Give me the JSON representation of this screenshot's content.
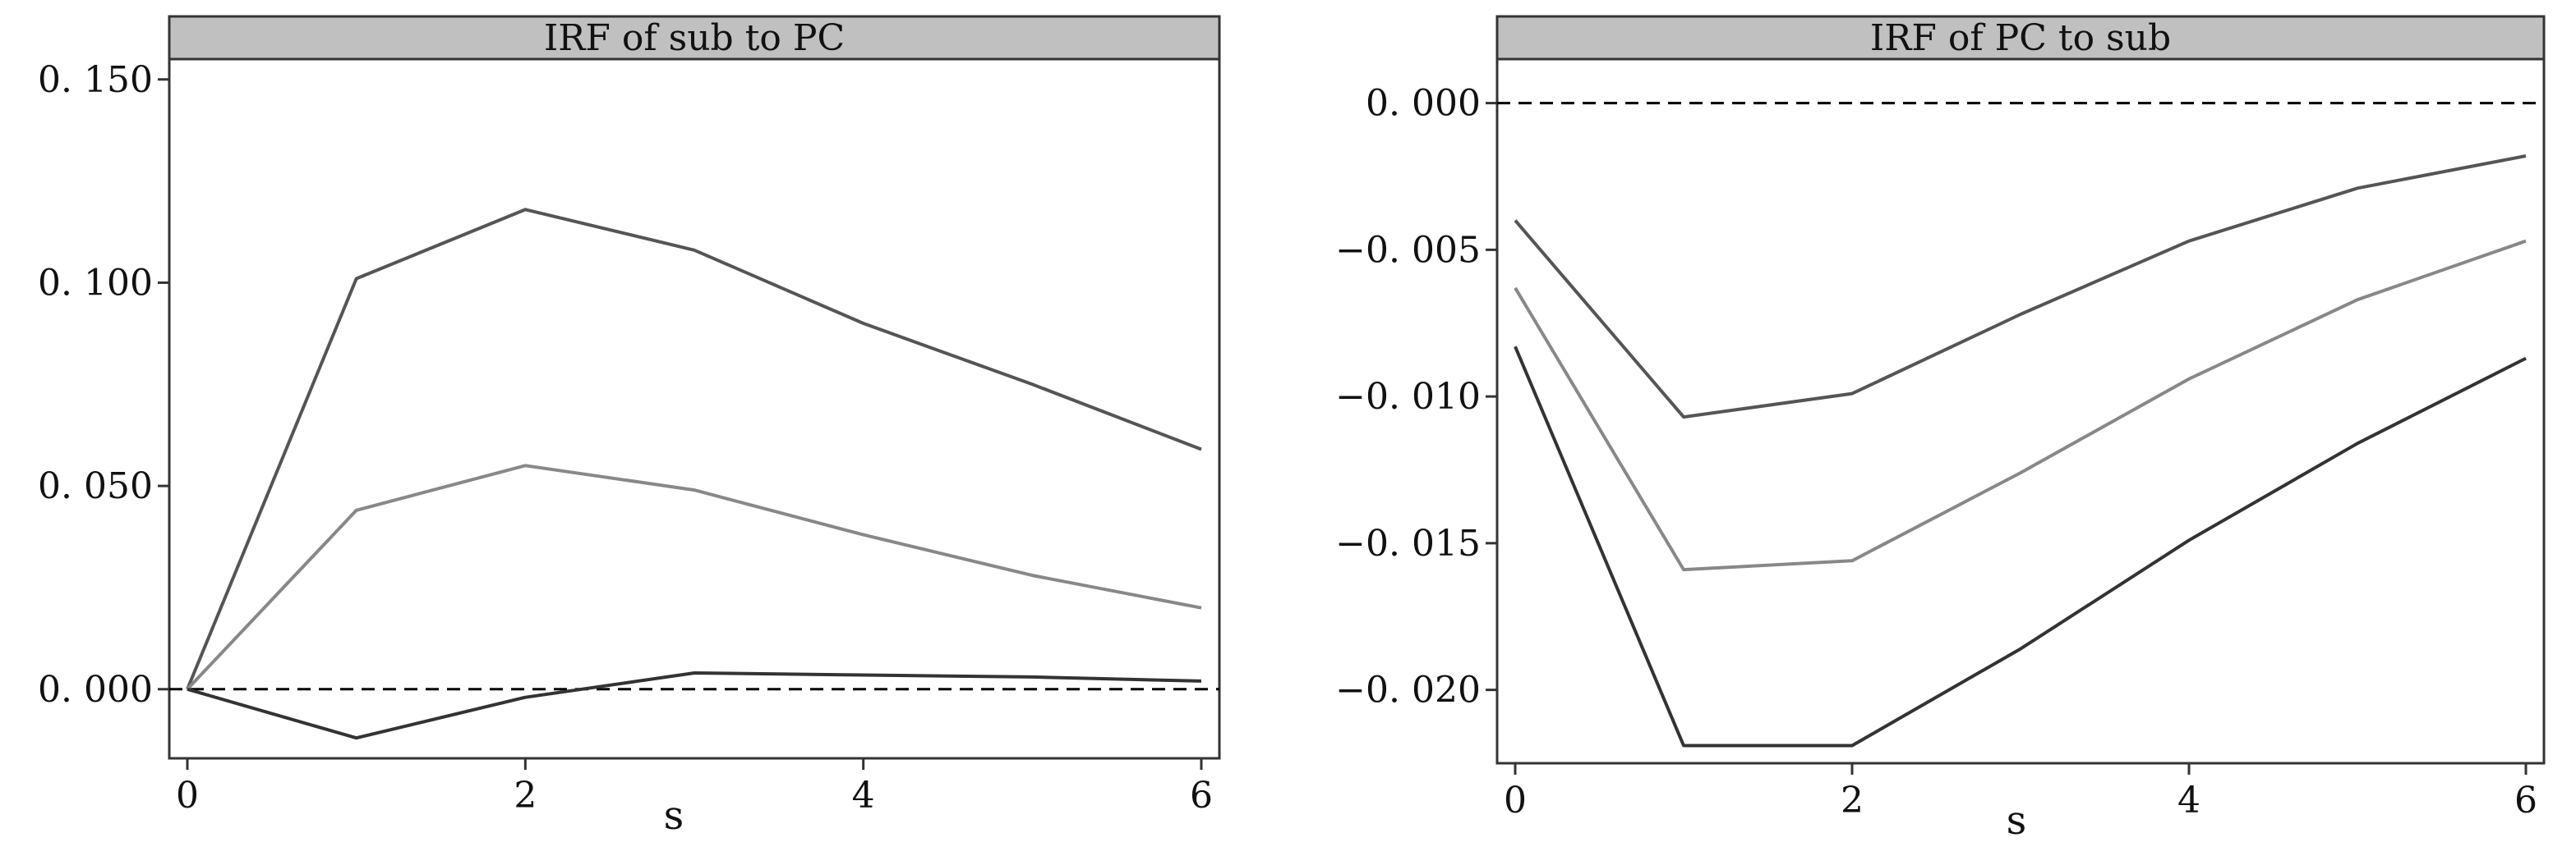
{
  "chart_data": [
    {
      "type": "line",
      "title": "IRF of sub to PC",
      "xlabel": "s",
      "ylabel": "",
      "x": [
        0,
        1,
        2,
        3,
        4,
        5,
        6
      ],
      "xlim": [
        0,
        6
      ],
      "ylim": [
        -0.017,
        0.155
      ],
      "xticks": [
        0,
        2,
        4,
        6
      ],
      "xtick_labels": [
        "0",
        "2",
        "4",
        "6"
      ],
      "yticks": [
        0,
        0.05,
        0.1,
        0.15
      ],
      "ytick_labels": [
        "0. 000",
        "0. 050",
        "0. 100",
        "0. 150"
      ],
      "reference_line": 0,
      "grid": false,
      "series": [
        {
          "values": [
            0,
            0.101,
            0.118,
            0.108,
            0.09,
            0.075,
            0.059
          ],
          "color": "#555555"
        },
        {
          "values": [
            0,
            0.044,
            0.055,
            0.049,
            0.038,
            0.028,
            0.02
          ],
          "color": "#888888"
        },
        {
          "values": [
            0,
            -0.012,
            -0.002,
            0.004,
            0.0035,
            0.003,
            0.002
          ],
          "color": "#333333"
        }
      ]
    },
    {
      "type": "line",
      "title": "IRF of PC to sub",
      "xlabel": "s",
      "ylabel": "",
      "x": [
        0,
        1,
        2,
        3,
        4,
        5,
        6
      ],
      "xlim": [
        0,
        6
      ],
      "ylim": [
        -0.0225,
        0.0015
      ],
      "xticks": [
        0,
        2,
        4,
        6
      ],
      "xtick_labels": [
        "0",
        "2",
        "4",
        "6"
      ],
      "yticks": [
        -0.02,
        -0.015,
        -0.01,
        -0.005,
        0
      ],
      "ytick_labels": [
        "−0. 020",
        "−0. 015",
        "−0. 010",
        "−0. 005",
        "0. 000"
      ],
      "reference_line": 0,
      "grid": false,
      "series": [
        {
          "values": [
            -0.004,
            -0.0107,
            -0.0099,
            -0.0072,
            -0.0047,
            -0.0029,
            -0.0018
          ],
          "color": "#555555"
        },
        {
          "values": [
            -0.0063,
            -0.0159,
            -0.0156,
            -0.0126,
            -0.0094,
            -0.0067,
            -0.0047
          ],
          "color": "#888888"
        },
        {
          "values": [
            -0.0083,
            -0.0219,
            -0.0219,
            -0.0186,
            -0.0149,
            -0.0116,
            -0.0087
          ],
          "color": "#333333"
        }
      ]
    }
  ],
  "colors": {
    "title_bar": "#c0c0c0",
    "frame": "#333333",
    "reference": "#000000"
  }
}
